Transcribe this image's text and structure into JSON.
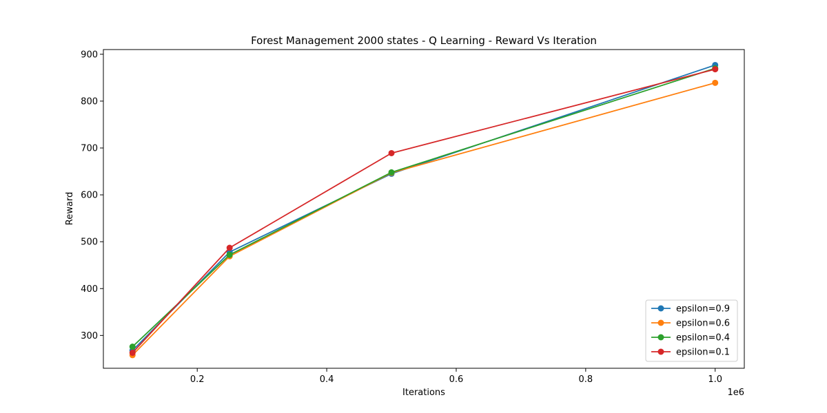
{
  "chart_data": {
    "type": "line",
    "title": "Forest Management 2000 states - Q Learning - Reward Vs Iteration",
    "xlabel": "Iterations",
    "ylabel": "Reward",
    "x_offset_label": "1e6",
    "x": [
      100000,
      250000,
      500000,
      1000000
    ],
    "xlim": [
      55000,
      1045000
    ],
    "ylim": [
      230,
      910
    ],
    "x_ticks": [
      200000,
      400000,
      600000,
      800000,
      1000000
    ],
    "x_tick_labels": [
      "0.2",
      "0.4",
      "0.6",
      "0.8",
      "1.0"
    ],
    "y_ticks": [
      300,
      400,
      500,
      600,
      700,
      800,
      900
    ],
    "y_tick_labels": [
      "300",
      "400",
      "500",
      "600",
      "700",
      "800",
      "900"
    ],
    "grid": false,
    "legend_position": "bottom-right",
    "series": [
      {
        "name": "epsilon=0.9",
        "color": "#1f77b4",
        "values": [
          268,
          478,
          645,
          877
        ]
      },
      {
        "name": "epsilon=0.6",
        "color": "#ff7f0e",
        "values": [
          258,
          469,
          647,
          839
        ]
      },
      {
        "name": "epsilon=0.4",
        "color": "#2ca02c",
        "values": [
          276,
          472,
          648,
          870
        ]
      },
      {
        "name": "epsilon=0.1",
        "color": "#d62728",
        "values": [
          263,
          487,
          689,
          868
        ]
      }
    ]
  }
}
